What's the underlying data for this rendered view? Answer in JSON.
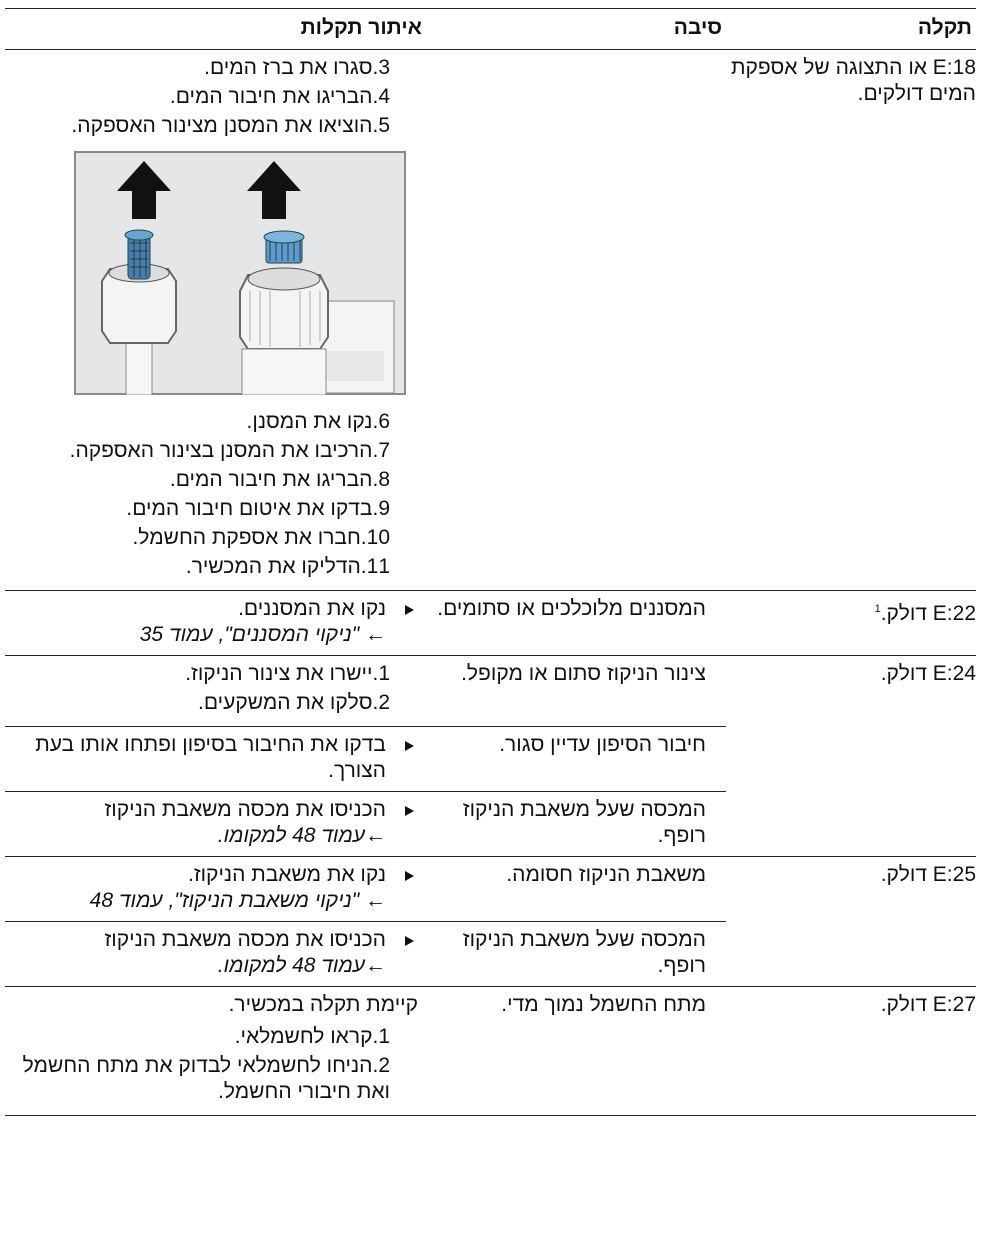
{
  "header": {
    "fault": "תקלה",
    "cause": "סיבה",
    "remedy": "איתור תקלות"
  },
  "rows": [
    {
      "fault": "E:18 או התצוגה של אספקת המים דולקים.",
      "entries": [
        {
          "remedy": {
            "steps": [
              {
                "num": "3.",
                "text": "סגרו את ברז המים."
              },
              {
                "num": "4.",
                "text": "הבריגו את חיבור המים."
              },
              {
                "num": "5.",
                "text": "הוציאו את המסנן מצינור האספקה."
              }
            ],
            "steps_after_image": [
              {
                "num": "6.",
                "text": "נקו את המסנן."
              },
              {
                "num": "7.",
                "text": "הרכיבו את המסנן בצינור האספקה."
              },
              {
                "num": "8.",
                "text": "הבריגו את חיבור המים."
              },
              {
                "num": "9.",
                "text": "בדקו את איטום חיבור המים."
              },
              {
                "num": "10.",
                "text": "חברו את אספקת החשמל."
              },
              {
                "num": "11.",
                "text": "הדליקו את המכשיר."
              }
            ]
          }
        }
      ]
    },
    {
      "fault": "E:22 דולק.",
      "footnote": "1",
      "entries": [
        {
          "cause": "המסננים מלוכלכים או סתומים.",
          "remedy": {
            "action": "נקו את המסננים.",
            "ref": "← \"ניקוי המסננים\", עמוד 35"
          }
        }
      ]
    },
    {
      "fault": "E:24 דולק.",
      "entries": [
        {
          "cause": "צינור הניקוז סתום או מקופל.",
          "remedy": {
            "steps": [
              {
                "num": "1.",
                "text": "יישרו את צינור הניקוז."
              },
              {
                "num": "2.",
                "text": "סלקו את המשקעים."
              }
            ]
          }
        },
        {
          "cause": "חיבור הסיפון עדיין סגור.",
          "remedy": {
            "action": "בדקו את החיבור בסיפון ופתחו אותו בעת הצורך."
          }
        },
        {
          "cause": "המכסה שעל משאבת הניקוז רופף.",
          "remedy": {
            "action": "הכניסו את מכסה משאבת הניקוז",
            "ref": "←עמוד 48 למקומו."
          }
        }
      ]
    },
    {
      "fault": "E:25 דולק.",
      "entries": [
        {
          "cause": "משאבת הניקוז חסומה.",
          "remedy": {
            "action": "נקו את משאבת הניקוז.",
            "ref": "← \"ניקוי משאבת הניקוז\", עמוד 48"
          }
        },
        {
          "cause": "המכסה שעל משאבת הניקוז רופף.",
          "remedy": {
            "action": "הכניסו את מכסה משאבת הניקוז",
            "ref": "←עמוד 48 למקומו."
          }
        }
      ]
    },
    {
      "fault": "E:27 דולק.",
      "entries": [
        {
          "cause": "מתח החשמל נמוך מדי.",
          "remedy": {
            "note": "קיימת תקלה במכשיר.",
            "steps": [
              {
                "num": "1.",
                "text": "קראו לחשמלאי."
              },
              {
                "num": "2.",
                "text": "הניחו לחשמלאי לבדוק את מתח החשמל ואת חיבורי החשמל."
              }
            ]
          }
        }
      ]
    }
  ]
}
